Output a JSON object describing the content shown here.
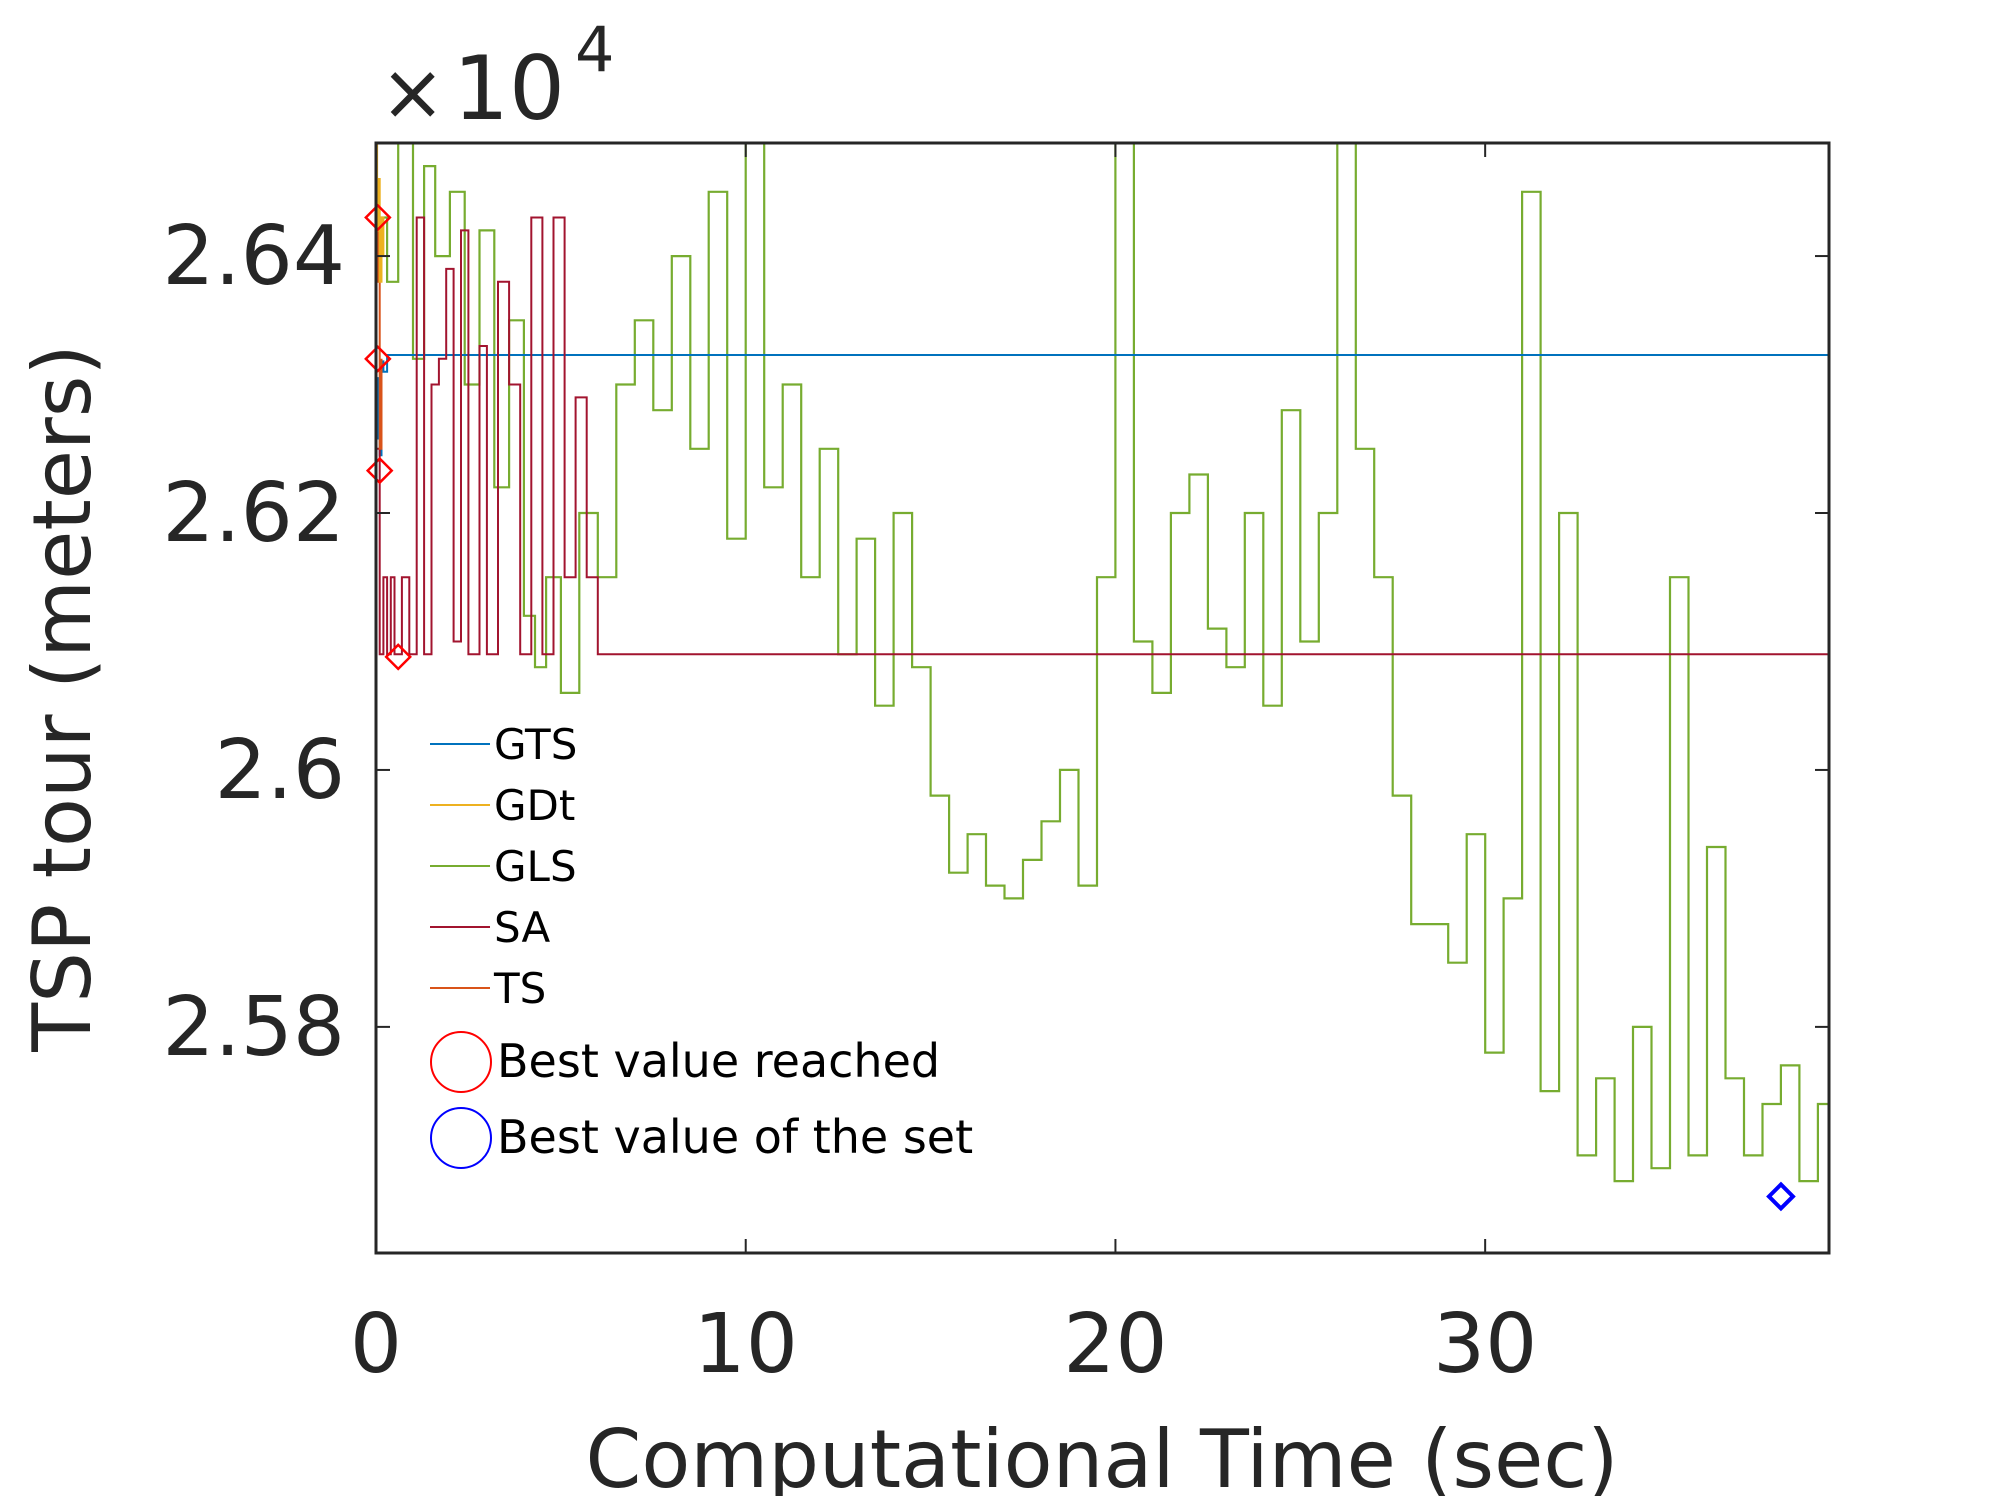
{
  "chart_data": {
    "type": "line",
    "title": "",
    "xlabel": "Computational Time (sec)",
    "ylabel": "TSP tour (meters)",
    "y_exponent_label": {
      "prefix": "×",
      "base": "10",
      "exponent": "4"
    },
    "xlim": [
      0,
      39.3
    ],
    "ylim": [
      2.5624,
      2.6488
    ],
    "xticks": [
      0,
      10,
      20,
      30
    ],
    "xtick_labels": [
      "0",
      "10",
      "20",
      "30"
    ],
    "yticks": [
      2.58,
      2.6,
      2.62,
      2.64
    ],
    "ytick_labels": [
      "2.58",
      "2.6",
      "2.62",
      "2.64"
    ],
    "grid": false,
    "legend_position": "lower-left",
    "series": [
      {
        "name": "GTS",
        "color": "#0072BD",
        "x": [
          0,
          0.05,
          0.1,
          0.15,
          0.2,
          0.3,
          39.3
        ],
        "y": [
          2.6258,
          2.6305,
          2.6245,
          2.6318,
          2.631,
          2.6323,
          2.6323
        ]
      },
      {
        "name": "GDt",
        "color": "#EDB120",
        "x": [
          0,
          0.03,
          0.06,
          0.1,
          0.15,
          0.2
        ],
        "y": [
          2.6488,
          2.642,
          2.646,
          2.638,
          2.643,
          2.64
        ]
      },
      {
        "name": "GLS",
        "color": "#77AC30",
        "x": [
          0,
          0.3,
          0.6,
          1.0,
          1.3,
          1.6,
          2.0,
          2.4,
          2.8,
          3.2,
          3.6,
          4.0,
          4.3,
          4.6,
          5.0,
          5.5,
          6.0,
          6.5,
          7.0,
          7.5,
          8.0,
          8.5,
          9.0,
          9.5,
          10.0,
          10.5,
          11.0,
          11.5,
          12.0,
          12.5,
          13.0,
          13.5,
          14.0,
          14.5,
          15.0,
          15.5,
          16.0,
          16.5,
          17.0,
          17.5,
          18.0,
          18.5,
          19.0,
          19.5,
          20.0,
          20.5,
          21.0,
          21.5,
          22.0,
          22.5,
          23.0,
          23.5,
          24.0,
          24.5,
          25.0,
          25.5,
          26.0,
          26.5,
          27.0,
          27.5,
          28.0,
          28.5,
          29.0,
          29.5,
          30.0,
          30.5,
          31.0,
          31.5,
          32.0,
          32.5,
          33.0,
          33.5,
          34.0,
          34.5,
          35.0,
          35.5,
          36.0,
          36.5,
          37.0,
          37.5,
          38.0,
          38.5,
          39.0,
          39.3
        ],
        "y": [
          2.643,
          2.638,
          2.6488,
          2.632,
          2.647,
          2.64,
          2.645,
          2.63,
          2.642,
          2.622,
          2.635,
          2.612,
          2.608,
          2.615,
          2.606,
          2.62,
          2.615,
          2.63,
          2.635,
          2.628,
          2.64,
          2.625,
          2.645,
          2.618,
          2.6488,
          2.622,
          2.63,
          2.615,
          2.625,
          2.609,
          2.618,
          2.605,
          2.62,
          2.608,
          2.598,
          2.592,
          2.595,
          2.591,
          2.59,
          2.593,
          2.596,
          2.6,
          2.591,
          2.615,
          2.6488,
          2.61,
          2.606,
          2.62,
          2.623,
          2.611,
          2.608,
          2.62,
          2.605,
          2.628,
          2.61,
          2.62,
          2.6488,
          2.625,
          2.615,
          2.598,
          2.588,
          2.588,
          2.585,
          2.595,
          2.578,
          2.59,
          2.645,
          2.575,
          2.62,
          2.57,
          2.576,
          2.568,
          2.58,
          2.569,
          2.615,
          2.57,
          2.594,
          2.576,
          2.57,
          2.574,
          2.577,
          2.568,
          2.574,
          2.599
        ]
      },
      {
        "name": "SA",
        "color": "#A2142F",
        "x": [
          0,
          0.1,
          0.2,
          0.3,
          0.4,
          0.5,
          0.7,
          0.9,
          1.1,
          1.3,
          1.5,
          1.7,
          1.9,
          2.1,
          2.3,
          2.5,
          2.8,
          3.0,
          3.3,
          3.6,
          3.9,
          4.2,
          4.5,
          4.8,
          5.1,
          5.4,
          5.7,
          6.0,
          39.3
        ],
        "y": [
          2.625,
          2.609,
          2.615,
          2.609,
          2.615,
          2.609,
          2.615,
          2.609,
          2.643,
          2.609,
          2.63,
          2.632,
          2.639,
          2.61,
          2.642,
          2.609,
          2.633,
          2.609,
          2.638,
          2.63,
          2.609,
          2.643,
          2.609,
          2.643,
          2.615,
          2.629,
          2.615,
          2.609,
          2.609
        ]
      },
      {
        "name": "TS",
        "color": "#D95319",
        "x": [
          0,
          0.02,
          0.05,
          0.1,
          0.15
        ],
        "y": [
          2.6488,
          2.638,
          2.643,
          2.625,
          2.632
        ]
      }
    ],
    "markers": [
      {
        "label": "Best value reached",
        "color": "#FF0000",
        "points": [
          {
            "x": 0.05,
            "y": 2.643
          },
          {
            "x": 0.05,
            "y": 2.632
          },
          {
            "x": 0.1,
            "y": 2.6233
          },
          {
            "x": 0.6,
            "y": 2.6088
          }
        ]
      },
      {
        "label": "Best value of the set",
        "color": "#0000FF",
        "points": [
          {
            "x": 38.0,
            "y": 2.5668
          }
        ]
      }
    ],
    "legend": {
      "line_entries": [
        "GTS",
        "GDt",
        "GLS",
        "SA",
        "TS"
      ],
      "marker_entries": [
        "Best value reached",
        "Best value of the set"
      ]
    }
  }
}
